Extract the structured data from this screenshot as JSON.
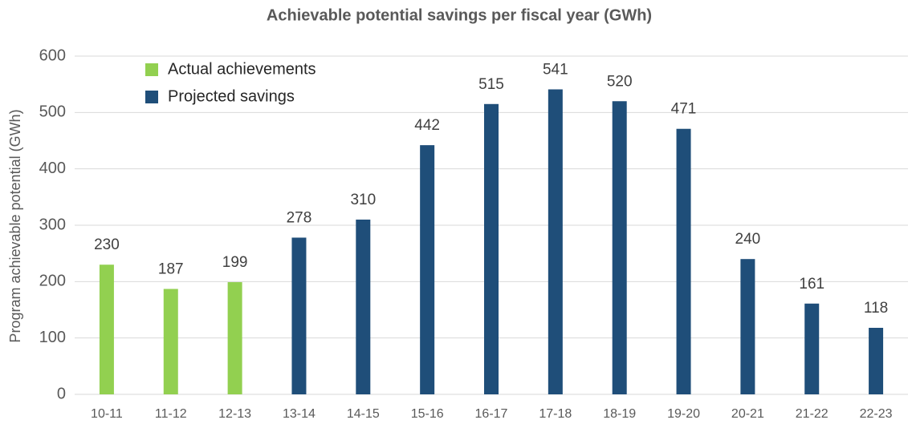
{
  "chart_data": {
    "type": "bar",
    "title": "Achievable potential savings per fiscal year (GWh)",
    "y_label": "Program achievable potential  (GWh)",
    "categories": [
      "10-11",
      "11-12",
      "12-13",
      "13-14",
      "14-15",
      "15-16",
      "16-17",
      "17-18",
      "18-19",
      "19-20",
      "20-21",
      "21-22",
      "22-23"
    ],
    "series": [
      {
        "name": "Actual achievements",
        "color": "#92d050",
        "values": [
          230,
          187,
          199,
          null,
          null,
          null,
          null,
          null,
          null,
          null,
          null,
          null,
          null
        ]
      },
      {
        "name": "Projected savings",
        "color": "#1f4e79",
        "values": [
          null,
          null,
          null,
          278,
          310,
          442,
          515,
          541,
          520,
          471,
          240,
          161,
          118
        ]
      }
    ],
    "ylim": [
      0,
      600
    ],
    "yticks": [
      0,
      100,
      200,
      300,
      400,
      500,
      600
    ],
    "grid": true,
    "legend": "top-left"
  }
}
